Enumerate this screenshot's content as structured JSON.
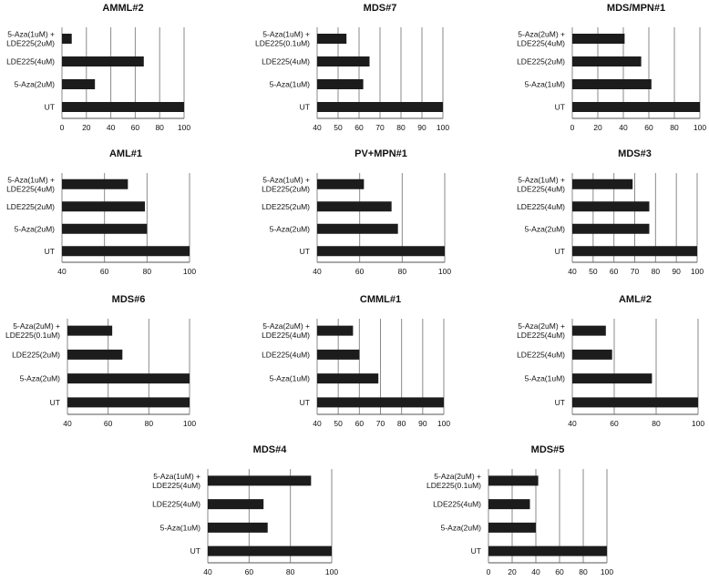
{
  "chart_data": [
    {
      "type": "bar",
      "orientation": "horizontal",
      "title": "AMML#2",
      "categories": [
        "UT",
        "5-Aza(2uM)",
        "LDE225(4uM)",
        "5-Aza(1uM) + LDE225(2uM)"
      ],
      "category_lines": [
        [
          "UT"
        ],
        [
          "5-Aza(2uM)"
        ],
        [
          "LDE225(4uM)"
        ],
        [
          "5-Aza(1uM) +",
          "LDE225(2uM)"
        ]
      ],
      "values": [
        100,
        27,
        67,
        8
      ],
      "xlim": [
        0,
        100
      ],
      "xticks": [
        "0",
        "20",
        "40",
        "60",
        "80",
        "100"
      ]
    },
    {
      "type": "bar",
      "orientation": "horizontal",
      "title": "MDS#7",
      "categories": [
        "UT",
        "5-Aza(1uM)",
        "LDE225(4uM)",
        "5-Aza(1uM) + LDE225(0.1uM)"
      ],
      "category_lines": [
        [
          "UT"
        ],
        [
          "5-Aza(1uM)"
        ],
        [
          "LDE225(4uM)"
        ],
        [
          "5-Aza(1uM) +",
          "LDE225(0.1uM)"
        ]
      ],
      "values": [
        100,
        62,
        65,
        54
      ],
      "xlim": [
        40,
        100
      ],
      "xticks": [
        "40",
        "50",
        "60",
        "70",
        "80",
        "90",
        "100"
      ]
    },
    {
      "type": "bar",
      "orientation": "horizontal",
      "title": "MDS/MPN#1",
      "categories": [
        "UT",
        "5-Aza(1uM)",
        "LDE225(2uM)",
        "5-Aza(2uM) + LDE225(4uM)"
      ],
      "category_lines": [
        [
          "UT"
        ],
        [
          "5-Aza(1uM)"
        ],
        [
          "LDE225(2uM)"
        ],
        [
          "5-Aza(2uM) +",
          "LDE225(4uM)"
        ]
      ],
      "values": [
        100,
        62,
        54,
        41
      ],
      "xlim": [
        0,
        100
      ],
      "xticks": [
        "0",
        "20",
        "40",
        "60",
        "80",
        "100"
      ]
    },
    {
      "type": "bar",
      "orientation": "horizontal",
      "title": "AML#1",
      "categories": [
        "UT",
        "5-Aza(2uM)",
        "LDE225(2uM)",
        "5-Aza(1uM) + LDE225(4uM)"
      ],
      "category_lines": [
        [
          "UT"
        ],
        [
          "5-Aza(2uM)"
        ],
        [
          "LDE225(2uM)"
        ],
        [
          "5-Aza(1uM) +",
          "LDE225(4uM)"
        ]
      ],
      "values": [
        100,
        80,
        79,
        71
      ],
      "xlim": [
        40,
        100
      ],
      "xticks": [
        "40",
        "60",
        "80",
        "100"
      ]
    },
    {
      "type": "bar",
      "orientation": "horizontal",
      "title": "PV+MPN#1",
      "categories": [
        "UT",
        "5-Aza(2uM)",
        "LDE225(2uM)",
        "5-Aza(1uM) + LDE225(2uM)"
      ],
      "category_lines": [
        [
          "UT"
        ],
        [
          "5-Aza(2uM)"
        ],
        [
          "LDE225(2uM)"
        ],
        [
          "5-Aza(1uM) +",
          "LDE225(2uM)"
        ]
      ],
      "values": [
        100,
        78,
        75,
        62
      ],
      "xlim": [
        40,
        100
      ],
      "xticks": [
        "40",
        "60",
        "80",
        "100"
      ]
    },
    {
      "type": "bar",
      "orientation": "horizontal",
      "title": "MDS#3",
      "categories": [
        "UT",
        "5-Aza(2uM)",
        "LDE225(4uM)",
        "5-Aza(1uM) + LDE225(4uM)"
      ],
      "category_lines": [
        [
          "UT"
        ],
        [
          "5-Aza(2uM)"
        ],
        [
          "LDE225(4uM)"
        ],
        [
          "5-Aza(1uM) +",
          "LDE225(4uM)"
        ]
      ],
      "values": [
        100,
        77,
        77,
        69
      ],
      "xlim": [
        40,
        100
      ],
      "xticks": [
        "40",
        "50",
        "60",
        "70",
        "80",
        "90",
        "100"
      ]
    },
    {
      "type": "bar",
      "orientation": "horizontal",
      "title": "MDS#6",
      "categories": [
        "UT",
        "5-Aza(2uM)",
        "LDE225(2uM)",
        "5-Aza(2uM) + LDE225(0.1uM)"
      ],
      "category_lines": [
        [
          "UT"
        ],
        [
          "5-Aza(2uM)"
        ],
        [
          "LDE225(2uM)"
        ],
        [
          "5-Aza(2uM) +",
          "LDE225(0.1uM)"
        ]
      ],
      "values": [
        100,
        100,
        67,
        62
      ],
      "xlim": [
        40,
        100
      ],
      "xticks": [
        "40",
        "60",
        "80",
        "100"
      ]
    },
    {
      "type": "bar",
      "orientation": "horizontal",
      "title": "CMML#1",
      "categories": [
        "UT",
        "5-Aza(1uM)",
        "LDE225(4uM)",
        "5-Aza(2uM) + LDE225(4uM)"
      ],
      "category_lines": [
        [
          "UT"
        ],
        [
          "5-Aza(1uM)"
        ],
        [
          "LDE225(4uM)"
        ],
        [
          "5-Aza(2uM) +",
          "LDE225(4uM)"
        ]
      ],
      "values": [
        100,
        69,
        60,
        57
      ],
      "xlim": [
        40,
        100
      ],
      "xticks": [
        "40",
        "50",
        "60",
        "70",
        "80",
        "90",
        "100"
      ]
    },
    {
      "type": "bar",
      "orientation": "horizontal",
      "title": "AML#2",
      "categories": [
        "UT",
        "5-Aza(1uM)",
        "LDE225(4uM)",
        "5-Aza(2uM) + LDE225(4uM)"
      ],
      "category_lines": [
        [
          "UT"
        ],
        [
          "5-Aza(1uM)"
        ],
        [
          "LDE225(4uM)"
        ],
        [
          "5-Aza(2uM) +",
          "LDE225(4uM)"
        ]
      ],
      "values": [
        100,
        78,
        59,
        56
      ],
      "xlim": [
        40,
        100
      ],
      "xticks": [
        "40",
        "60",
        "80",
        "100"
      ]
    },
    {
      "type": "bar",
      "orientation": "horizontal",
      "title": "MDS#4",
      "categories": [
        "UT",
        "5-Aza(1uM)",
        "LDE225(4uM)",
        "5-Aza(1uM) + LDE225(4uM)"
      ],
      "category_lines": [
        [
          "UT"
        ],
        [
          "5-Aza(1uM)"
        ],
        [
          "LDE225(4uM)"
        ],
        [
          "5-Aza(1uM) +",
          "LDE225(4uM)"
        ]
      ],
      "values": [
        100,
        69,
        67,
        90
      ],
      "xlim": [
        40,
        100
      ],
      "xticks": [
        "40",
        "60",
        "80",
        "100"
      ]
    },
    {
      "type": "bar",
      "orientation": "horizontal",
      "title": "MDS#5",
      "categories": [
        "UT",
        "5-Aza(2uM)",
        "LDE225(4uM)",
        "5-Aza(2uM) + LDE225(0.1uM)"
      ],
      "category_lines": [
        [
          "UT"
        ],
        [
          "5-Aza(2uM)"
        ],
        [
          "LDE225(4uM)"
        ],
        [
          "5-Aza(2uM) +",
          "LDE225(0.1uM)"
        ]
      ],
      "values": [
        100,
        40,
        35,
        42
      ],
      "xlim": [
        0,
        100
      ],
      "xticks": [
        "0",
        "20",
        "40",
        "60",
        "80",
        "100"
      ]
    }
  ]
}
